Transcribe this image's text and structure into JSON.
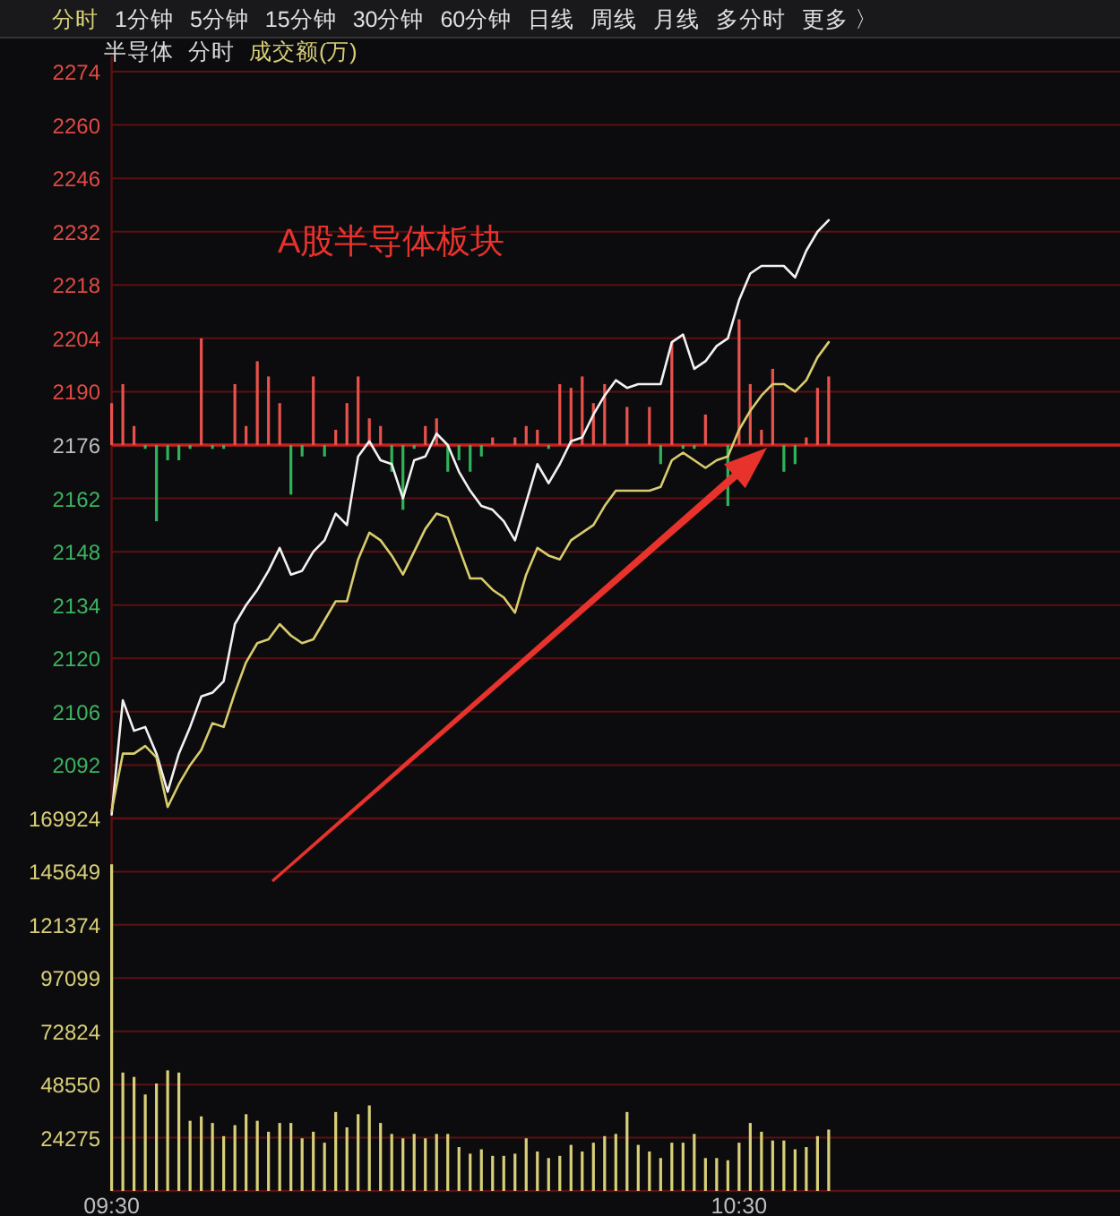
{
  "chart_data": [
    {
      "type": "line",
      "title": "半导体",
      "subtitle": "分时",
      "annotations": [
        "分时",
        "1分钟",
        "5分钟",
        "15分钟",
        "30分钟",
        "60分钟",
        "日线",
        "周线",
        "月线",
        "多分时",
        "更多 〉",
        "成交额(万)",
        "A股半导体板块"
      ],
      "categories": [
        null,
        null,
        null,
        null,
        null,
        null,
        null,
        null,
        null,
        null,
        null,
        null,
        null,
        null,
        null,
        null,
        null,
        null,
        null,
        null,
        null,
        null,
        null,
        null,
        null,
        null,
        null,
        null,
        null,
        null,
        null,
        null,
        null,
        null,
        null,
        null,
        null,
        null,
        null,
        null,
        null,
        null,
        null,
        null,
        null,
        null,
        null,
        null,
        null,
        null,
        null,
        null,
        null,
        null,
        null,
        null,
        null,
        null,
        null,
        null,
        null,
        null,
        null,
        null,
        null,
        null,
        null,
        null,
        null,
        null,
        null,
        null,
        null,
        null,
        null,
        null,
        null,
        null,
        null,
        null,
        null,
        null,
        null,
        null,
        null,
        null,
        null,
        null,
        null,
        null,
        null
      ],
      "series": [
        {
          "type": "bar",
          "color": "#e8524c",
          "base": [
            2176,
            2176,
            2176,
            null,
            null,
            null,
            null,
            null,
            2176,
            null,
            null,
            2176,
            2176,
            2176,
            2176,
            2176,
            null,
            null,
            2176,
            null,
            2176,
            2176,
            2176,
            2176,
            2176,
            null,
            null,
            null,
            2176,
            2176,
            null,
            null,
            null,
            null,
            2176,
            null,
            2176,
            2176,
            2176,
            null,
            2176,
            2176,
            2176,
            2176,
            2176,
            null,
            2176,
            null,
            2176,
            null,
            2176,
            null,
            null,
            2176,
            null,
            null,
            2176,
            2176,
            2176,
            2176,
            null,
            null,
            2176,
            2176,
            2176,
            null,
            null,
            null,
            null,
            null,
            null,
            null,
            null,
            null,
            null,
            null,
            null,
            null,
            null,
            null,
            null,
            null,
            null,
            null,
            null,
            null,
            null,
            null,
            null,
            null,
            null
          ],
          "values": [
            11,
            16,
            5,
            null,
            null,
            null,
            null,
            null,
            28,
            null,
            null,
            16,
            5,
            22,
            18,
            11,
            null,
            null,
            18,
            null,
            4,
            11,
            18,
            7,
            5,
            null,
            null,
            null,
            5,
            7,
            null,
            null,
            null,
            null,
            2,
            null,
            2,
            5,
            4,
            null,
            16,
            15,
            18,
            11,
            16,
            null,
            10,
            null,
            10,
            null,
            27,
            null,
            null,
            8,
            null,
            null,
            33,
            16,
            4,
            20,
            null,
            null,
            2,
            15,
            18,
            null,
            null,
            null,
            null,
            null,
            null,
            null,
            null,
            null,
            null,
            null,
            null,
            null,
            null,
            null,
            null,
            null,
            null,
            null,
            null,
            null,
            null,
            null,
            null,
            null,
            null
          ]
        },
        {
          "type": "bar",
          "color": "#2fb35a",
          "base": [
            null,
            null,
            null,
            2176,
            2176,
            2176,
            2176,
            2176,
            null,
            2176,
            2176,
            null,
            null,
            null,
            null,
            null,
            2176,
            2176,
            null,
            2176,
            null,
            null,
            null,
            null,
            null,
            2176,
            2176,
            2176,
            null,
            null,
            2176,
            2176,
            2176,
            2176,
            null,
            null,
            null,
            null,
            null,
            2176,
            null,
            null,
            null,
            null,
            null,
            null,
            null,
            null,
            null,
            2176,
            null,
            2176,
            2176,
            null,
            null,
            2176,
            null,
            null,
            null,
            null,
            2176,
            2176,
            null,
            null,
            null,
            null,
            null,
            null,
            null,
            null,
            null,
            null,
            null,
            null,
            null,
            null,
            null,
            null,
            null,
            null,
            null,
            null,
            null,
            null,
            null,
            null,
            null,
            null,
            null,
            null,
            null
          ],
          "values": [
            null,
            null,
            null,
            -1,
            -20,
            -4,
            -4,
            -1,
            null,
            -1,
            -1,
            null,
            null,
            null,
            null,
            null,
            -13,
            -3,
            null,
            -3,
            null,
            null,
            null,
            null,
            null,
            -7,
            -17,
            -1,
            null,
            null,
            -7,
            -4,
            -7,
            -3,
            null,
            null,
            null,
            null,
            null,
            -1,
            null,
            null,
            null,
            null,
            null,
            null,
            null,
            null,
            null,
            -5,
            null,
            -1,
            -1,
            null,
            null,
            -16,
            null,
            null,
            null,
            null,
            -7,
            -5,
            null,
            null,
            null,
            null,
            null,
            null,
            null,
            null,
            null,
            null,
            null,
            null,
            null,
            null,
            null,
            null,
            null,
            null,
            null,
            null,
            null,
            null,
            null,
            null,
            null,
            null,
            null,
            null,
            null
          ]
        },
        {
          "type": "line",
          "color": "#f2f2f2",
          "values": [
            2079,
            2109,
            2101,
            2102,
            2095,
            2085,
            2095,
            2102,
            2110,
            2111,
            2114,
            2129,
            2134,
            2138,
            2143,
            2149,
            2142,
            2143,
            2148,
            2151,
            2158,
            2155,
            2173,
            2177,
            2172,
            2171,
            2162,
            2172,
            2173,
            2179,
            2176,
            2169,
            2164,
            2160,
            2159,
            2156,
            2151,
            2161,
            2171,
            2166,
            2171,
            2177,
            2178,
            2184,
            2189,
            2193,
            2191,
            2192,
            2192,
            2192,
            2203,
            2205,
            2196,
            2198,
            2202,
            2204,
            2214,
            2221,
            2223,
            2223,
            2223,
            2220,
            2227,
            2232,
            2235,
            null,
            null,
            null,
            null,
            null,
            null,
            null,
            null,
            null,
            null,
            null,
            null,
            null,
            null,
            null,
            null,
            null,
            null,
            null,
            null,
            null,
            null,
            null,
            null,
            null,
            null
          ]
        },
        {
          "type": "line",
          "color": "#d9cc6e",
          "values": [
            2080,
            2095,
            2095,
            2097,
            2094,
            2081,
            2087,
            2092,
            2096,
            2103,
            2102,
            2111,
            2119,
            2124,
            2125,
            2129,
            2126,
            2124,
            2125,
            2130,
            2135,
            2135,
            2146,
            2153,
            2151,
            2147,
            2142,
            2148,
            2154,
            2158,
            2157,
            2149,
            2141,
            2141,
            2138,
            2136,
            2132,
            2142,
            2149,
            2147,
            2146,
            2151,
            2153,
            2155,
            2160,
            2164,
            2164,
            2164,
            2164,
            2165,
            2172,
            2174,
            2172,
            2170,
            2172,
            2173,
            2180,
            2185,
            2189,
            2192,
            2192,
            2190,
            2193,
            2199,
            2203,
            null,
            null,
            null,
            null,
            null,
            null,
            null,
            null,
            null,
            null,
            null,
            null,
            null,
            null,
            null,
            null,
            null,
            null,
            null,
            null,
            null,
            null,
            null,
            null,
            null,
            null
          ]
        }
      ],
      "ylim": [
        2078,
        2278
      ],
      "yticks": [
        2092,
        2106,
        2120,
        2134,
        2148,
        2162,
        2176,
        2190,
        2204,
        2218,
        2232,
        2246,
        2260,
        2274
      ],
      "ref_lines": [
        {
          "axis": "y",
          "value": 2176,
          "color": "#c8201e"
        }
      ],
      "grid": "y",
      "tick_labels": "y"
    },
    {
      "type": "bar",
      "color": "#d8cf78",
      "categories": [
        "09:30",
        null,
        null,
        null,
        null,
        null,
        null,
        null,
        null,
        null,
        null,
        null,
        null,
        null,
        null,
        null,
        null,
        null,
        null,
        null,
        null,
        null,
        null,
        null,
        null,
        null,
        null,
        null,
        null,
        null,
        null,
        null,
        null,
        null,
        null,
        null,
        null,
        null,
        null,
        null,
        null,
        null,
        null,
        null,
        null,
        null,
        null,
        null,
        null,
        null,
        null,
        null,
        null,
        null,
        null,
        null,
        "10:30",
        null,
        null,
        null,
        null,
        null,
        null,
        null,
        null,
        null,
        null,
        null,
        null,
        null,
        null,
        null,
        null,
        null,
        null,
        null,
        null,
        null,
        null,
        null,
        null,
        null,
        null,
        null,
        null,
        null,
        null,
        null,
        null,
        null,
        null
      ],
      "values": [
        149000,
        54000,
        52000,
        44000,
        49000,
        55000,
        54000,
        32000,
        34000,
        31000,
        25000,
        30000,
        35000,
        32000,
        27000,
        31000,
        31000,
        24000,
        27000,
        22000,
        36000,
        29000,
        35000,
        39000,
        31000,
        26000,
        24000,
        26000,
        24000,
        26000,
        26000,
        20000,
        17000,
        19000,
        16000,
        16000,
        17000,
        24000,
        18000,
        15000,
        16000,
        21000,
        18000,
        22000,
        25000,
        26000,
        36000,
        21000,
        18000,
        15000,
        22000,
        22000,
        26000,
        15000,
        15000,
        14000,
        22000,
        31000,
        27000,
        23000,
        23000,
        19000,
        20000,
        25000,
        28000,
        null,
        null,
        null,
        null,
        null,
        null,
        null,
        null,
        null,
        null,
        null,
        null,
        null,
        null,
        null,
        null,
        null,
        null,
        null,
        null,
        null,
        null,
        null,
        null,
        null,
        null
      ],
      "ylim": [
        0,
        169924
      ],
      "yticks": [
        24275,
        48550,
        72824,
        97099,
        121374,
        145649,
        169924
      ],
      "grid": "y"
    }
  ]
}
